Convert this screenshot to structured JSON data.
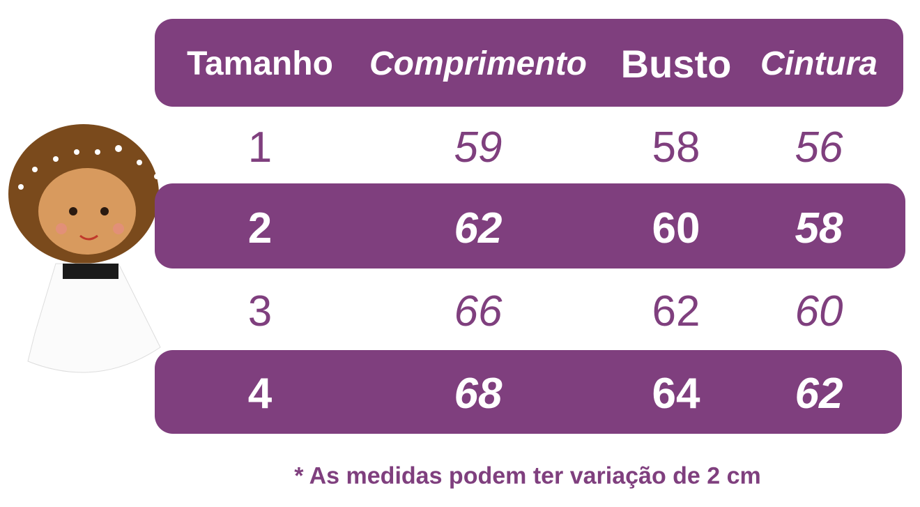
{
  "accent_color": "#7f3f7e",
  "table": {
    "headers": [
      "Tamanho",
      "Comprimento",
      "Busto",
      "Cintura"
    ],
    "rows": [
      [
        "1",
        "59",
        "58",
        "56"
      ],
      [
        "2",
        "62",
        "60",
        "58"
      ],
      [
        "3",
        "66",
        "62",
        "60"
      ],
      [
        "4",
        "68",
        "64",
        "62"
      ]
    ]
  },
  "footnote": "* As medidas podem ter variação de 2 cm",
  "illustration": "girl-in-white-dress"
}
